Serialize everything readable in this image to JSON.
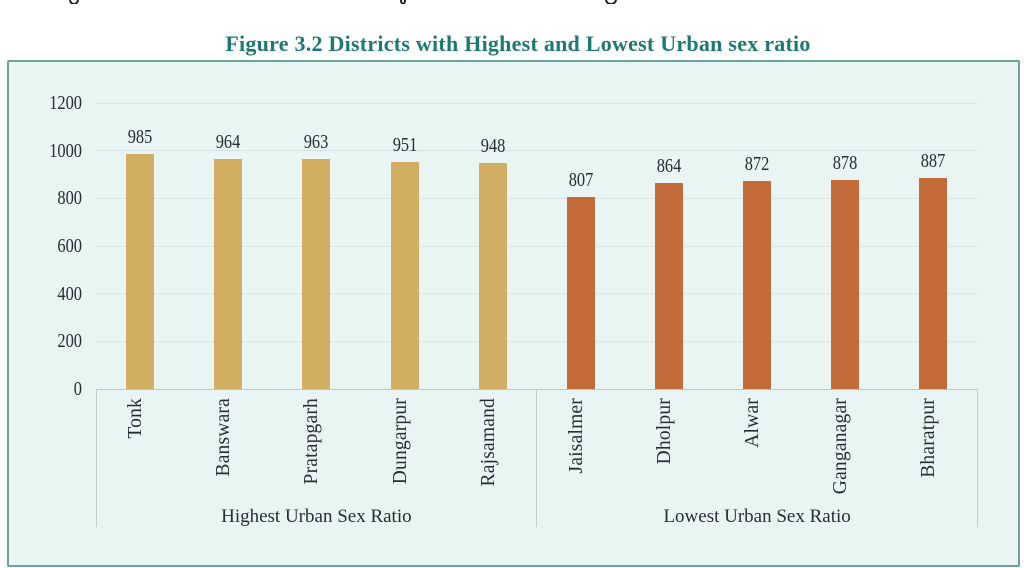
{
  "page": {
    "background": "#ffffff",
    "top_cropped_line": {
      "note": "descender remnants of a text line cut off by the crop",
      "fragments": [
        "g",
        "g",
        "g"
      ]
    }
  },
  "figure": {
    "title": "Figure 3.2 Districts with Highest and Lowest Urban sex ratio",
    "title_color": "#1e7a70",
    "panel_background": "#e8f5f2",
    "panel_border_color": "#6da39c",
    "text_color": "#272e33"
  },
  "chart_data": {
    "type": "bar",
    "title": "Figure 3.2 Districts with Highest and Lowest Urban sex ratio",
    "categories": [
      "Tonk",
      "Banswara",
      "Pratapgarh",
      "Dungarpur",
      "Rajsamand",
      "Jaisalmer",
      "Dholpur",
      "Alwar",
      "Ganganagar",
      "Bharatpur"
    ],
    "values": [
      985,
      964,
      963,
      951,
      948,
      807,
      864,
      872,
      878,
      887
    ],
    "groups": [
      {
        "label": "Highest Urban Sex Ratio",
        "color": "#d2ae63",
        "categories": [
          "Tonk",
          "Banswara",
          "Pratapgarh",
          "Dungarpur",
          "Rajsamand"
        ],
        "values": [
          985,
          964,
          963,
          951,
          948
        ]
      },
      {
        "label": "Lowest Urban Sex Ratio",
        "color": "#c46c39",
        "categories": [
          "Jaisalmer",
          "Dholpur",
          "Alwar",
          "Ganganagar",
          "Bharatpur"
        ],
        "values": [
          807,
          864,
          872,
          878,
          887
        ]
      }
    ],
    "xlabel": "",
    "ylabel": "",
    "ylim": [
      0,
      1200
    ],
    "yticks": [
      0,
      200,
      400,
      600,
      800,
      1000,
      1200
    ],
    "grid": true,
    "gridline_color": "#d8e4e5",
    "axis_line_color": "#bcc7ca",
    "separator_color": "#c3ced1",
    "value_labels": "outside-end",
    "legend": "none"
  }
}
